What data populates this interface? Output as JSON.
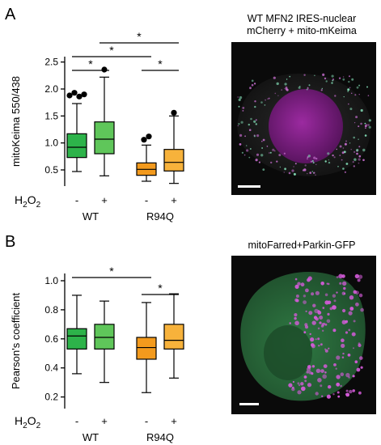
{
  "panels": [
    {
      "letter": "A",
      "chart_data": {
        "type": "box",
        "ylabel": "mitoKeima 550/438",
        "ylim": [
          0.2,
          2.6
        ],
        "yticks": [
          0.5,
          1.0,
          1.5,
          2.0,
          2.5
        ],
        "ytick_labels": [
          "0.5",
          "1.0",
          "1.5",
          "2.0",
          "2.5"
        ],
        "treatment_label": "H2O2",
        "treatment_signs": [
          "-",
          "+",
          "-",
          "+"
        ],
        "group_labels": [
          "WT",
          "R94Q"
        ],
        "boxes": [
          {
            "group": "WT",
            "treatment": "-",
            "min": 0.47,
            "q1": 0.73,
            "median": 0.92,
            "q3": 1.17,
            "max": 1.73,
            "outliers": [
              1.88,
              1.93,
              1.86,
              1.9
            ],
            "color": "#2db34a"
          },
          {
            "group": "WT",
            "treatment": "+",
            "min": 0.39,
            "q1": 0.8,
            "median": 1.07,
            "q3": 1.39,
            "max": 2.22,
            "outliers": [
              2.36
            ],
            "color": "#5fc65a"
          },
          {
            "group": "R94Q",
            "treatment": "-",
            "min": 0.29,
            "q1": 0.4,
            "median": 0.51,
            "q3": 0.63,
            "max": 0.96,
            "outliers": [
              1.06,
              1.12
            ],
            "color": "#f39a1d"
          },
          {
            "group": "R94Q",
            "treatment": "+",
            "min": 0.25,
            "q1": 0.48,
            "median": 0.64,
            "q3": 0.88,
            "max": 1.5,
            "outliers": [
              1.56
            ],
            "color": "#f7b23b"
          }
        ],
        "significance": [
          {
            "from": 0,
            "to": 1,
            "level": 1,
            "label": "*"
          },
          {
            "from": 2,
            "to": 3,
            "level": 1,
            "label": "*"
          },
          {
            "from": 0,
            "to": 2,
            "level": 2,
            "label": "*"
          },
          {
            "from": 1,
            "to": 3,
            "level": 3,
            "label": "*"
          }
        ]
      },
      "image": {
        "title_lines": [
          "WT MFN2 IRES-nuclear",
          "mCherry + mito-mKeima"
        ],
        "base_color": "#1a1a1a"
      }
    },
    {
      "letter": "B",
      "chart_data": {
        "type": "box",
        "ylabel": "Pearson's coefficient",
        "ylim": [
          0.12,
          1.05
        ],
        "yticks": [
          0.2,
          0.4,
          0.6,
          0.8,
          1.0
        ],
        "ytick_labels": [
          "0.2",
          "0.4",
          "0.6",
          "0.8",
          "1.0"
        ],
        "treatment_label": "H2O2",
        "treatment_signs": [
          "-",
          "+",
          "-",
          "+"
        ],
        "group_labels": [
          "WT",
          "R94Q"
        ],
        "boxes": [
          {
            "group": "WT",
            "treatment": "-",
            "min": 0.36,
            "q1": 0.53,
            "median": 0.62,
            "q3": 0.67,
            "max": 0.9,
            "outliers": [],
            "color": "#2db34a"
          },
          {
            "group": "WT",
            "treatment": "+",
            "min": 0.3,
            "q1": 0.53,
            "median": 0.61,
            "q3": 0.7,
            "max": 0.86,
            "outliers": [],
            "color": "#5fc65a"
          },
          {
            "group": "R94Q",
            "treatment": "-",
            "min": 0.23,
            "q1": 0.46,
            "median": 0.54,
            "q3": 0.61,
            "max": 0.85,
            "outliers": [],
            "color": "#f39a1d"
          },
          {
            "group": "R94Q",
            "treatment": "+",
            "min": 0.33,
            "q1": 0.53,
            "median": 0.59,
            "q3": 0.7,
            "max": 0.91,
            "outliers": [],
            "color": "#f7b23b"
          }
        ],
        "significance": [
          {
            "from": 2,
            "to": 3,
            "level": 1,
            "label": "*"
          },
          {
            "from": 0,
            "to": 2,
            "level": 2,
            "label": "*"
          }
        ]
      },
      "image": {
        "title_lines": [
          "mitoFarred+Parkin-GFP"
        ],
        "base_color": "#0a1a0c"
      }
    }
  ]
}
